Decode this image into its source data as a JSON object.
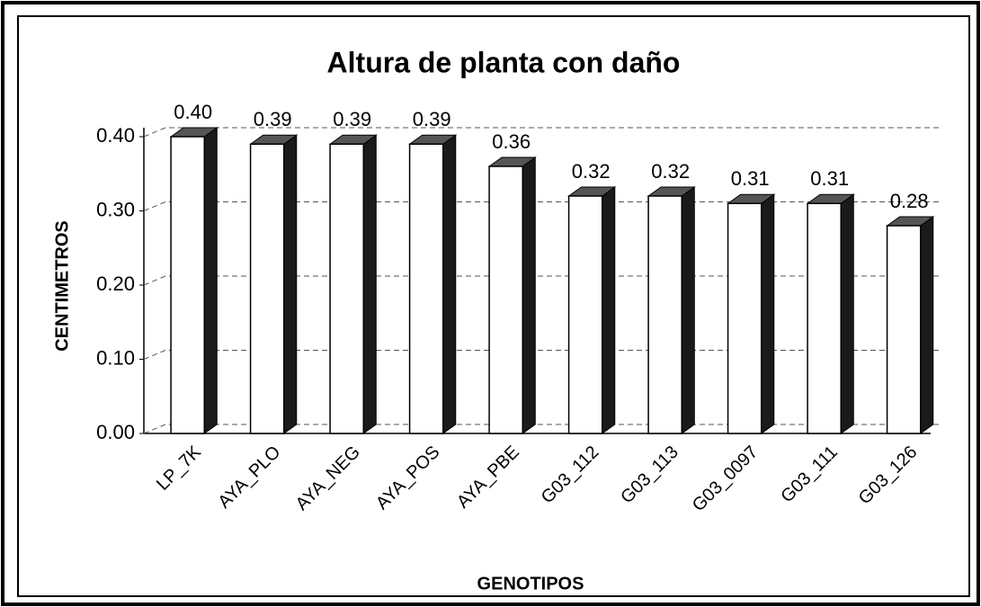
{
  "chart_data": {
    "type": "bar3d",
    "title": "Altura de planta con daño",
    "ylabel": "CENTIMETROS",
    "xlabel": "GENOTIPOS",
    "categories": [
      "LP_7K",
      "AYA_PLO",
      "AYA_NEG",
      "AYA_POS",
      "AYA_PBE",
      "G03_112",
      "G03_113",
      "G03_0097",
      "G03_111",
      "G03_126"
    ],
    "values": [
      0.4,
      0.39,
      0.39,
      0.39,
      0.36,
      0.32,
      0.32,
      0.31,
      0.31,
      0.28
    ],
    "value_labels": [
      "0.40",
      "0.39",
      "0.39",
      "0.39",
      "0.36",
      "0.32",
      "0.32",
      "0.31",
      "0.31",
      "0.28"
    ],
    "color": "#ffffff",
    "side_color": "#1a1a1a",
    "ylim": [
      0,
      0.4
    ],
    "yticks": [
      {
        "value": 0,
        "label": "0.00"
      },
      {
        "value": 0.1,
        "label": "0.10"
      },
      {
        "value": 0.2,
        "label": "0.20"
      },
      {
        "value": 0.3,
        "label": "0.30"
      },
      {
        "value": 0.4,
        "label": "0.40"
      }
    ],
    "grid": true
  }
}
